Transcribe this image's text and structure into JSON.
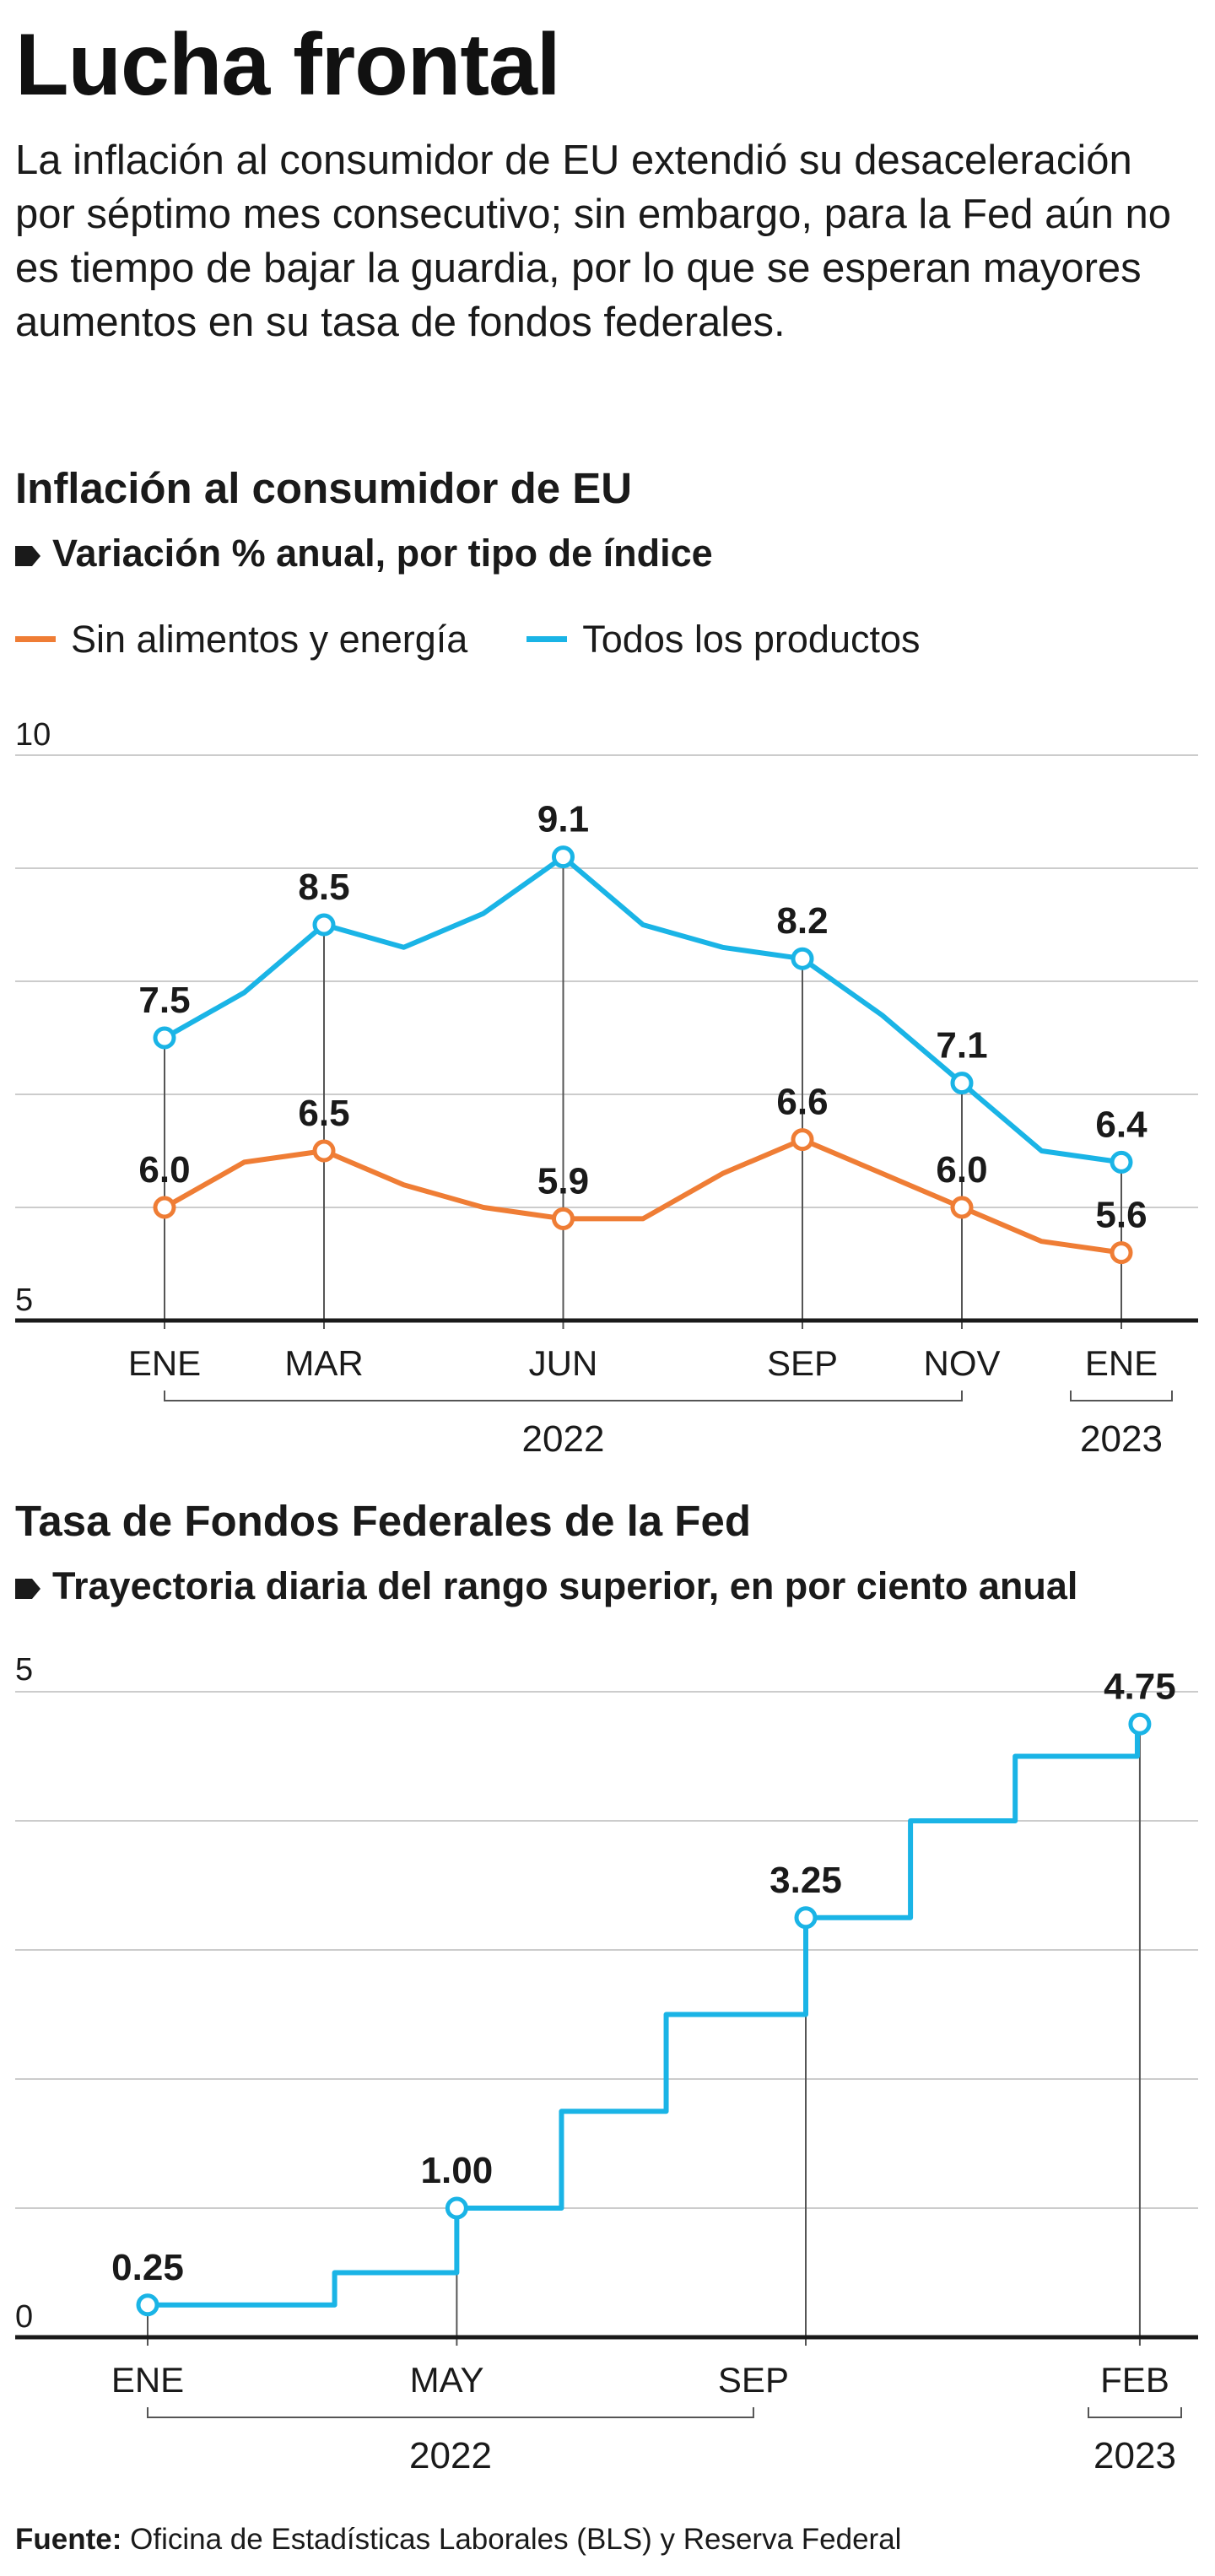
{
  "title": "Lucha frontal",
  "subtitle": "La inflación al consumidor de EU extendió su desaceleración por séptimo mes consecutivo; sin embargo, para la Fed aún no es tiempo de bajar la guardia, por lo que se esperan mayores aumentos en su tasa de fondos federales.",
  "colors": {
    "orange": "#ef7d35",
    "blue": "#1ab4e6",
    "grid": "#cccccc",
    "axis": "#1a1a1a"
  },
  "footer": {
    "label": "Fuente:",
    "text": "Oficina de Estadísticas Laborales (BLS) y Reserva Federal"
  },
  "chart_data": [
    {
      "type": "line",
      "title": "Inflación al consumidor de EU",
      "subtitle": "Variación % anual, por tipo de índice",
      "legend": "top-left",
      "grid": true,
      "ylim": [
        5,
        10
      ],
      "y_ticks": [
        "10",
        "5"
      ],
      "x_ticks": [
        {
          "label": "ENE",
          "x": 0
        },
        {
          "label": "MAR",
          "x": 2
        },
        {
          "label": "JUN",
          "x": 5
        },
        {
          "label": "SEP",
          "x": 8
        },
        {
          "label": "NOV",
          "x": 10
        },
        {
          "label": "ENE",
          "x": 12
        }
      ],
      "x_groups": [
        {
          "label": "2022",
          "from": 0,
          "to": 10
        },
        {
          "label": "2023",
          "from": 12,
          "to": 12
        }
      ],
      "series": [
        {
          "name": "Sin alimentos y energía",
          "color": "#ef7d35",
          "values": [
            6.0,
            6.4,
            6.5,
            6.2,
            6.0,
            5.9,
            5.9,
            6.3,
            6.6,
            6.3,
            6.0,
            5.7,
            5.6
          ],
          "labels": [
            {
              "x": 0,
              "text": "6.0"
            },
            {
              "x": 2,
              "text": "6.5"
            },
            {
              "x": 5,
              "text": "5.9"
            },
            {
              "x": 8,
              "text": "6.6"
            },
            {
              "x": 10,
              "text": "6.0"
            },
            {
              "x": 12,
              "text": "5.6"
            }
          ]
        },
        {
          "name": "Todos los productos",
          "color": "#1ab4e6",
          "values": [
            7.5,
            7.9,
            8.5,
            8.3,
            8.6,
            9.1,
            8.5,
            8.3,
            8.2,
            7.7,
            7.1,
            6.5,
            6.4
          ],
          "labels": [
            {
              "x": 0,
              "text": "7.5"
            },
            {
              "x": 2,
              "text": "8.5"
            },
            {
              "x": 5,
              "text": "9.1"
            },
            {
              "x": 8,
              "text": "8.2"
            },
            {
              "x": 10,
              "text": "7.1"
            },
            {
              "x": 12,
              "text": "6.4"
            }
          ]
        }
      ]
    },
    {
      "type": "line",
      "step": true,
      "title": "Tasa de Fondos Federales de la Fed",
      "subtitle": "Trayectoria diaria del rango superior, en por ciento anual",
      "grid": true,
      "ylim": [
        0,
        5
      ],
      "y_ticks": [
        "5",
        "0"
      ],
      "x_range": [
        "2022-01-01",
        "2023-02-01"
      ],
      "x_ticks": [
        {
          "label": "ENE",
          "x": "2022-01-01"
        },
        {
          "label": "MAY",
          "x": "2022-05-01"
        },
        {
          "label": "SEP",
          "x": "2022-09-01"
        },
        {
          "label": "FEB",
          "x": "2023-02-01"
        }
      ],
      "x_groups": [
        {
          "label": "2022",
          "from": "2022-01-01",
          "to": "2022-09-01"
        },
        {
          "label": "2023",
          "from": "2023-02-01",
          "to": "2023-02-01"
        }
      ],
      "series": [
        {
          "name": "",
          "color": "#1ab4e6",
          "steps": [
            {
              "date": "2022-01-01",
              "value": 0.25
            },
            {
              "date": "2022-03-17",
              "value": 0.5
            },
            {
              "date": "2022-05-05",
              "value": 1.0
            },
            {
              "date": "2022-06-16",
              "value": 1.75
            },
            {
              "date": "2022-07-28",
              "value": 2.5
            },
            {
              "date": "2022-09-22",
              "value": 3.25
            },
            {
              "date": "2022-11-03",
              "value": 4.0
            },
            {
              "date": "2022-12-15",
              "value": 4.5
            },
            {
              "date": "2023-02-02",
              "value": 4.75
            }
          ],
          "end_date": "2023-02-03",
          "labels": [
            {
              "date": "2022-01-01",
              "value": 0.25,
              "text": "0.25"
            },
            {
              "date": "2022-05-05",
              "value": 1.0,
              "text": "1.00"
            },
            {
              "date": "2022-09-22",
              "value": 3.25,
              "text": "3.25"
            },
            {
              "date": "2023-02-03",
              "value": 4.75,
              "text": "4.75"
            }
          ]
        }
      ]
    }
  ]
}
